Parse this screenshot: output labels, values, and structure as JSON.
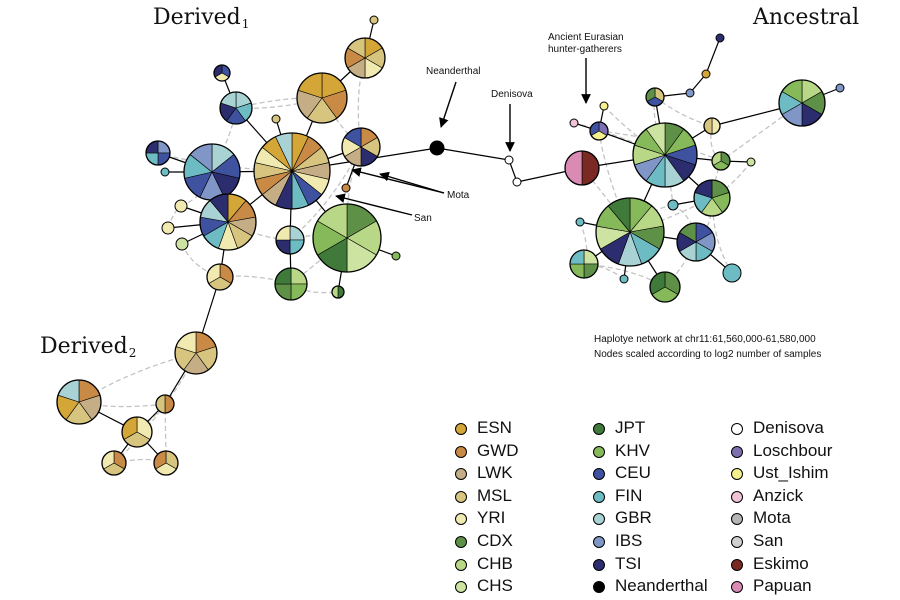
{
  "labels": {
    "derived1": "Derived",
    "derived1_sub": "1",
    "derived2": "Derived",
    "derived2_sub": "2",
    "ancestral": "Ancestral",
    "neanderthal": "Neanderthal",
    "denisova": "Denisova",
    "ancient_line1": "Ancient Eurasian",
    "ancient_line2": "hunter-gatherers",
    "mota": "Mota",
    "san": "San"
  },
  "caption": {
    "line1": "Haplotye network at chr11:61,560,000-61,580,000",
    "line2": "Nodes scaled according to log2 number of samples"
  },
  "legend": [
    {
      "label": "ESN",
      "color": "#d4a637"
    },
    {
      "label": "GWD",
      "color": "#c98a45"
    },
    {
      "label": "LWK",
      "color": "#c5ad85"
    },
    {
      "label": "MSL",
      "color": "#d6c47f"
    },
    {
      "label": "YRI",
      "color": "#f1eab0"
    },
    {
      "label": "CDX",
      "color": "#5e9147"
    },
    {
      "label": "CHB",
      "color": "#b9d887"
    },
    {
      "label": "CHS",
      "color": "#cde3a2"
    },
    {
      "label": "JPT",
      "color": "#3f7a3a"
    },
    {
      "label": "KHV",
      "color": "#86b95a"
    },
    {
      "label": "CEU",
      "color": "#3e52a0"
    },
    {
      "label": "FIN",
      "color": "#6dbcc4"
    },
    {
      "label": "GBR",
      "color": "#a9d2d4"
    },
    {
      "label": "IBS",
      "color": "#7f96c7"
    },
    {
      "label": "TSI",
      "color": "#2c2d6e"
    },
    {
      "label": "Neanderthal",
      "color": "#000000"
    },
    {
      "label": "Denisova",
      "color": "#ffffff"
    },
    {
      "label": "Loschbour",
      "color": "#7e70b0"
    },
    {
      "label": "Ust_Ishim",
      "color": "#f4f08d"
    },
    {
      "label": "Anzick",
      "color": "#f2c3d6"
    },
    {
      "label": "Mota",
      "color": "#b5b5b5"
    },
    {
      "label": "San",
      "color": "#d0d0d0"
    },
    {
      "label": "Eskimo",
      "color": "#7a2a22"
    },
    {
      "label": "Papuan",
      "color": "#d98bb3"
    }
  ]
}
